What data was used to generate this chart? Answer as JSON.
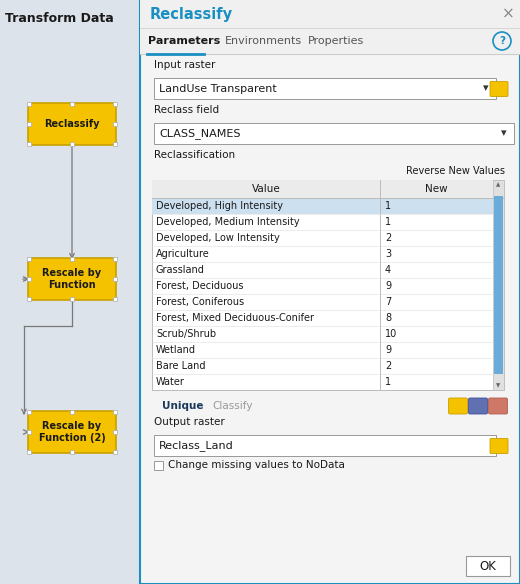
{
  "title": "Reclassify",
  "title_color": "#1a8fc1",
  "tab_labels": [
    "Parameters",
    "Environments",
    "Properties"
  ],
  "active_tab": "Parameters",
  "left_panel_title": "Transform Data",
  "input_raster_label": "Input raster",
  "input_raster_value": "LandUse Transparent",
  "reclass_field_label": "Reclass field",
  "reclass_field_value": "CLASS_NAMES",
  "reclassification_label": "Reclassification",
  "reverse_new_values": "Reverse New Values",
  "col_headers": [
    "Value",
    "New"
  ],
  "table_rows": [
    [
      "Developed, High Intensity",
      "1"
    ],
    [
      "Developed, Medium Intensity",
      "1"
    ],
    [
      "Developed, Low Intensity",
      "2"
    ],
    [
      "Agriculture",
      "3"
    ],
    [
      "Grassland",
      "4"
    ],
    [
      "Forest, Deciduous",
      "9"
    ],
    [
      "Forest, Coniferous",
      "7"
    ],
    [
      "Forest, Mixed Deciduous-Conifer",
      "8"
    ],
    [
      "Scrub/Shrub",
      "10"
    ],
    [
      "Wetland",
      "9"
    ],
    [
      "Bare Land",
      "2"
    ],
    [
      "Water",
      "1"
    ]
  ],
  "highlighted_row": 0,
  "highlight_color": "#cce0f0",
  "bottom_buttons": [
    "Unique",
    "Classify"
  ],
  "output_raster_label": "Output raster",
  "output_raster_value": "Reclass_Land",
  "checkbox_label": "Change missing values to NoData",
  "ok_button": "OK",
  "bg_color": "#dde3ea",
  "dialog_bg": "#f5f5f5",
  "left_bg": "#dde3ea",
  "node_color": "#f5c200",
  "node_border": "#c8a000",
  "table_border": "#bbbbbb",
  "blue_line": "#1a8fc1",
  "scrollbar_color": "#6aabda",
  "scrollbar_bg": "#e0e0e0",
  "icon_folder_color": "#f5c200",
  "icon_save_color": "#6070b0",
  "icon_erase_color": "#d07868",
  "handle_color": "#ffffff",
  "handle_border": "#aaaaaa",
  "arrow_color": "#777777",
  "dialog_border": "#1a8fc1",
  "close_color": "#888888",
  "dropdown_arrow": "#333333"
}
